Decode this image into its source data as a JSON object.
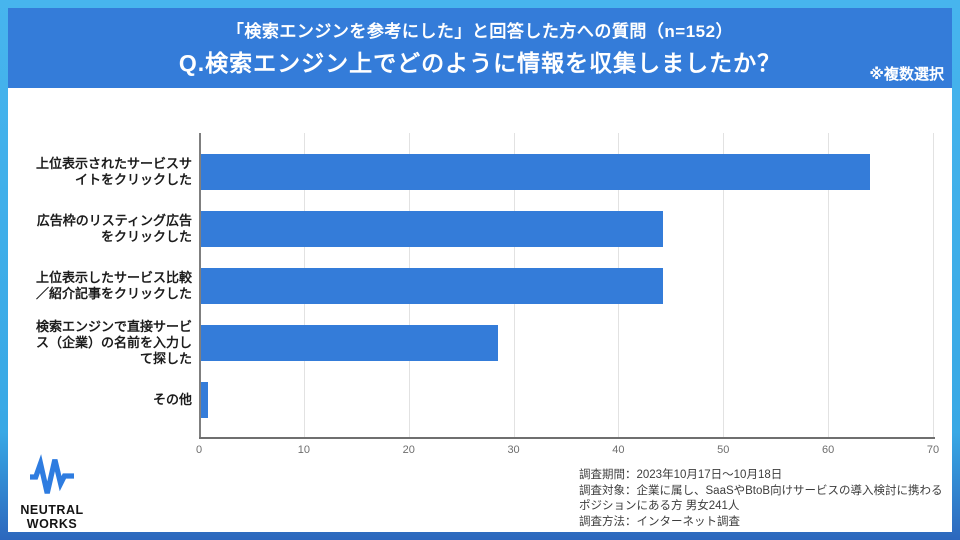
{
  "header": {
    "subtitle": "「検索エンジンを参考にした」と回答した方への質問（n=152）",
    "title": "Q.検索エンジン上でどのように情報を収集しましたか？",
    "note": "※複数選択",
    "band_color": "#347cd9"
  },
  "chart_data": {
    "type": "bar",
    "orientation": "horizontal",
    "categories": [
      "上位表示されたサービスサ\nイトをクリックした",
      "広告枠のリスティング広告\nをクリックした",
      "上位表示したサービス比較\n／紹介記事をクリックした",
      "検索エンジンで直接サービ\nス（企業）の名前を入力し\nて探した",
      "その他"
    ],
    "values": [
      63.8,
      44.1,
      44.1,
      28.3,
      0.7
    ],
    "xlim": [
      0,
      70
    ],
    "xticks": [
      0,
      10,
      20,
      30,
      40,
      50,
      60,
      70
    ],
    "bar_color": "#347cd9",
    "grid": true,
    "legend": "none",
    "title": "",
    "xlabel": "",
    "ylabel": ""
  },
  "footer": {
    "logo": {
      "icon": "pulse-waveform-icon",
      "icon_color": "#2e7ce0",
      "line1": "NEUTRAL",
      "line2": "WORKS"
    },
    "survey_info": [
      "調査期間：2023年10月17日～10月18日",
      "調査対象：企業に属し、SaaSやBtoB向けサービスの導入検討に携わるポジションにある方 男女241人",
      "調査方法：インターネット調査"
    ]
  }
}
